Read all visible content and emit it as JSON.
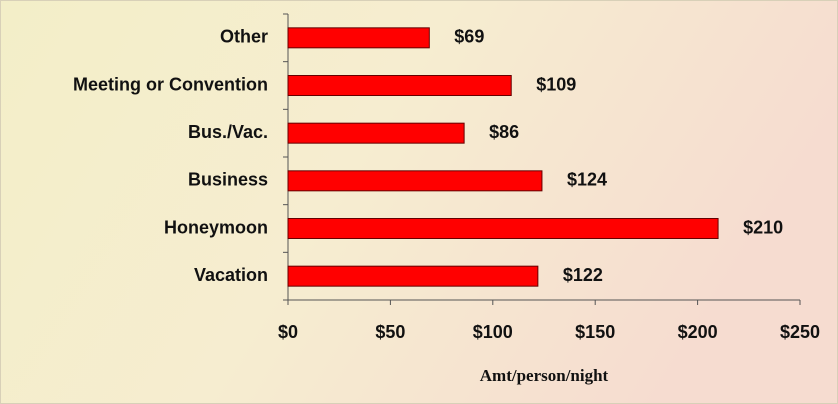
{
  "chart_data": {
    "type": "bar",
    "orientation": "horizontal",
    "xlabel": "Amt/person/night",
    "categories": [
      "Other",
      "Meeting or Convention",
      "Bus./Vac.",
      "Business",
      "Honeymoon",
      "Vacation"
    ],
    "values": [
      69,
      109,
      86,
      124,
      210,
      122
    ],
    "value_labels": [
      "$69",
      "$109",
      "$86",
      "$124",
      "$210",
      "$122"
    ],
    "color": "#ff0000",
    "xlim": [
      0,
      250
    ],
    "xticks": [
      {
        "value": 0,
        "label": "$0"
      },
      {
        "value": 50,
        "label": "$50"
      },
      {
        "value": 100,
        "label": "$100"
      },
      {
        "value": 150,
        "label": "$150"
      },
      {
        "value": 200,
        "label": "$200"
      },
      {
        "value": 250,
        "label": "$250"
      }
    ]
  }
}
